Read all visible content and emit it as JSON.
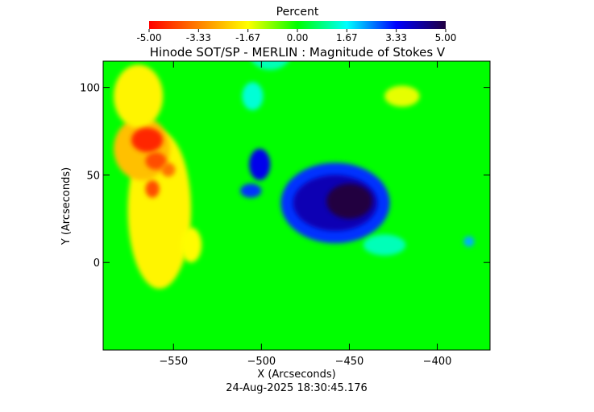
{
  "colorbar": {
    "title": "Percent",
    "min": -5.0,
    "max": 5.0,
    "tick_labels": [
      "-5.00",
      "-3.33",
      "-1.67",
      "0.00",
      "1.67",
      "3.33",
      "5.00"
    ],
    "colors": [
      "#ff0000",
      "#ff8000",
      "#ffff00",
      "#00ff00",
      "#00ffff",
      "#0000ff",
      "#200040"
    ]
  },
  "timestamp": "24-Aug-2025 18:30:45.176",
  "chart_data": {
    "type": "heatmap",
    "title": "Hinode SOT/SP - MERLIN : Magnitude of Stokes V",
    "xlabel": "X (Arcseconds)",
    "ylabel": "Y (Arcseconds)",
    "xlim": [
      -590,
      -370
    ],
    "ylim": [
      -50,
      115
    ],
    "xticks": [
      -550,
      -500,
      -450,
      -400
    ],
    "yticks": [
      0,
      50,
      100
    ],
    "value_range": [
      -5.0,
      5.0
    ],
    "background_value": 0.0,
    "features": [
      {
        "x": -450,
        "y": 35,
        "value": 5.0,
        "rx": 13,
        "ry": 10
      },
      {
        "x": -458,
        "y": 34,
        "value": 4.0,
        "rx": 24,
        "ry": 16
      },
      {
        "x": -458,
        "y": 34,
        "value": 3.0,
        "rx": 31,
        "ry": 23
      },
      {
        "x": -501,
        "y": 56,
        "value": 3.5,
        "rx": 6,
        "ry": 9
      },
      {
        "x": -506,
        "y": 41,
        "value": 3.0,
        "rx": 6,
        "ry": 4
      },
      {
        "x": -565,
        "y": 70,
        "value": -4.5,
        "rx": 9,
        "ry": 7
      },
      {
        "x": -560,
        "y": 58,
        "value": -4.0,
        "rx": 6,
        "ry": 5
      },
      {
        "x": -562,
        "y": 42,
        "value": -4.0,
        "rx": 4,
        "ry": 5
      },
      {
        "x": -553,
        "y": 53,
        "value": -3.5,
        "rx": 4,
        "ry": 4
      },
      {
        "x": -568,
        "y": 65,
        "value": -2.5,
        "rx": 16,
        "ry": 18
      },
      {
        "x": -558,
        "y": 30,
        "value": -1.8,
        "rx": 18,
        "ry": 45
      },
      {
        "x": -570,
        "y": 95,
        "value": -1.8,
        "rx": 14,
        "ry": 18
      },
      {
        "x": -540,
        "y": 10,
        "value": -1.7,
        "rx": 6,
        "ry": 10
      },
      {
        "x": -420,
        "y": 95,
        "value": -1.5,
        "rx": 10,
        "ry": 6
      },
      {
        "x": -430,
        "y": 10,
        "value": 1.2,
        "rx": 12,
        "ry": 6
      },
      {
        "x": -505,
        "y": 95,
        "value": 1.4,
        "rx": 6,
        "ry": 8
      },
      {
        "x": -495,
        "y": 120,
        "value": 1.2,
        "rx": 12,
        "ry": 10
      },
      {
        "x": -382,
        "y": 12,
        "value": 2.2,
        "rx": 3,
        "ry": 3
      }
    ]
  }
}
